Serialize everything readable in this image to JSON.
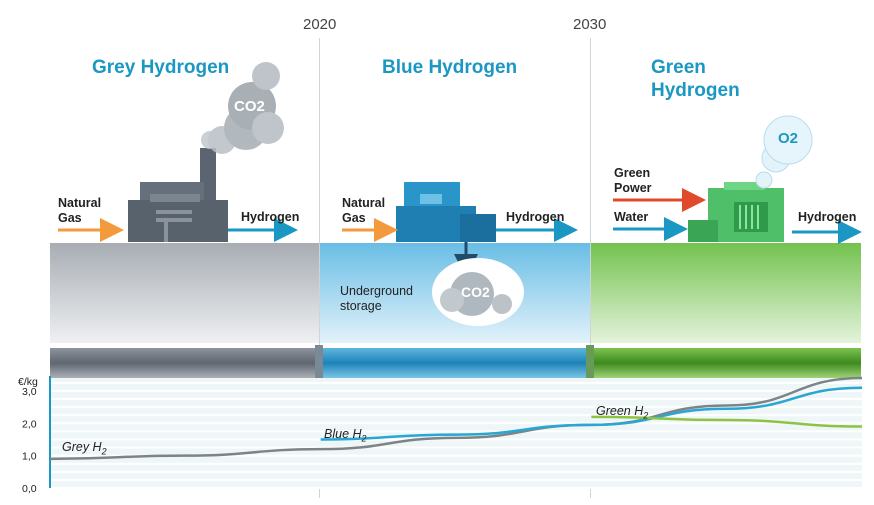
{
  "years": [
    "2020",
    "2030"
  ],
  "stages": [
    {
      "title": "Grey Hydrogen",
      "input_label": "Natural\nGas",
      "output_label": "Hydrogen",
      "emission_label": "CO2",
      "color": "#9aa0a8"
    },
    {
      "title": "Blue Hydrogen",
      "input_label": "Natural\nGas",
      "output_label": "Hydrogen",
      "storage_label": "Underground\nstorage",
      "emission_label": "CO2",
      "color": "#62b8e0"
    },
    {
      "title": "Green\nHydrogen",
      "input_labels": [
        "Green\nPower",
        "Water"
      ],
      "output_label": "Hydrogen",
      "emission_label": "O2",
      "color": "#6ec04a"
    }
  ],
  "colors": {
    "accent": "#1a98c3",
    "grey_line": "#7d8487",
    "blue_line": "#29a6d3",
    "green_line": "#8cc441",
    "arrow_orange": "#f39a3c",
    "arrow_red": "#e04a2a"
  },
  "icons": [
    "factory-icon",
    "co2-cloud-icon",
    "capture-plant-icon",
    "electrolyzer-icon",
    "o2-bubble-icon"
  ],
  "chart_data": {
    "type": "line",
    "ylabel": "€/kg",
    "y_ticks": [
      "0,0",
      "1,0",
      "2,0",
      "3,0"
    ],
    "ylim": [
      0,
      3.4
    ],
    "xlim": [
      2010,
      2040
    ],
    "series": [
      {
        "name": "Grey H2",
        "points": [
          [
            2010,
            0.9
          ],
          [
            2015,
            1.0
          ],
          [
            2020,
            1.2
          ],
          [
            2025,
            1.55
          ],
          [
            2030,
            1.95
          ],
          [
            2035,
            2.55
          ],
          [
            2040,
            3.4
          ]
        ]
      },
      {
        "name": "Blue H2",
        "points": [
          [
            2020,
            1.5
          ],
          [
            2025,
            1.65
          ],
          [
            2030,
            1.95
          ],
          [
            2035,
            2.45
          ],
          [
            2040,
            3.1
          ]
        ]
      },
      {
        "name": "Green H2",
        "points": [
          [
            2030,
            2.2
          ],
          [
            2035,
            2.1
          ],
          [
            2040,
            1.9
          ]
        ]
      }
    ]
  }
}
